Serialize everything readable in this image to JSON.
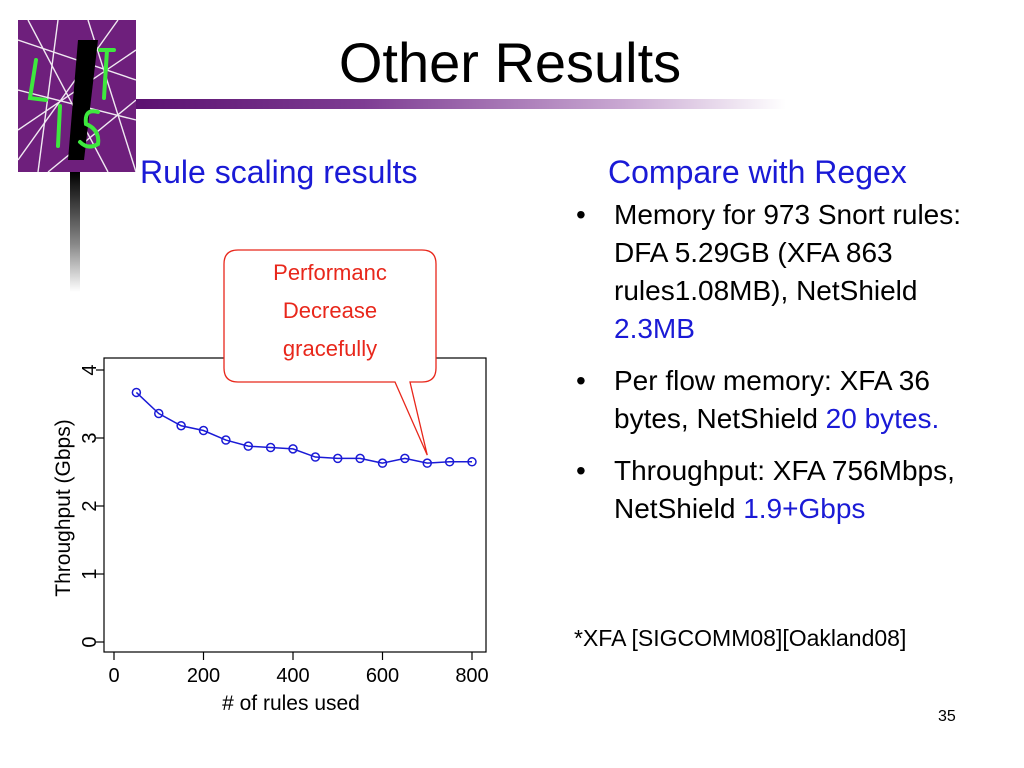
{
  "slide": {
    "title": "Other Results",
    "subtitle_left": "Rule scaling results",
    "subtitle_right": "Compare with Regex",
    "bullets": [
      {
        "segments": [
          {
            "text": "Memory for 973 Snort rules: DFA 5.29GB (XFA 863 rules1.08MB), NetShield ",
            "highlight": false
          },
          {
            "text": "2.3MB",
            "highlight": true
          }
        ]
      },
      {
        "segments": [
          {
            "text": "Per flow memory: XFA 36 bytes, NetShield ",
            "highlight": false
          },
          {
            "text": "20 bytes.",
            "highlight": true
          }
        ]
      },
      {
        "segments": [
          {
            "text": "Throughput: XFA 756Mbps, NetShield ",
            "highlight": false
          },
          {
            "text": "1.9+Gbps",
            "highlight": true
          }
        ]
      }
    ],
    "footnote": "*XFA [SIGCOMM08][Oakland08]",
    "page_number": "35",
    "logo_letters": "LIST",
    "colors": {
      "accent_blue": "#1a1ad6",
      "callout_red": "#e8271b",
      "bar_purple": "#5b1170"
    }
  },
  "chart_data": {
    "type": "line",
    "xlabel": "# of rules used",
    "ylabel": "Throughput (Gbps)",
    "xlim": [
      0,
      830
    ],
    "ylim": [
      0,
      4
    ],
    "xticks": [
      0,
      200,
      400,
      600,
      800
    ],
    "yticks": [
      0,
      1,
      2,
      3,
      4
    ],
    "series": [
      {
        "x": [
          50,
          100,
          150,
          200,
          250,
          300,
          350,
          400,
          450,
          500,
          550,
          600,
          650,
          700,
          750,
          800
        ],
        "y": [
          3.67,
          3.36,
          3.18,
          3.11,
          2.97,
          2.88,
          2.86,
          2.84,
          2.72,
          2.7,
          2.7,
          2.63,
          2.7,
          2.63,
          2.65,
          2.65
        ]
      }
    ],
    "annotation": {
      "text": "Performanc Decrease gracefully",
      "lines": [
        "Performanc",
        "Decrease",
        "gracefully"
      ],
      "points_to_x": 700,
      "points_to_y": 2.63
    }
  }
}
